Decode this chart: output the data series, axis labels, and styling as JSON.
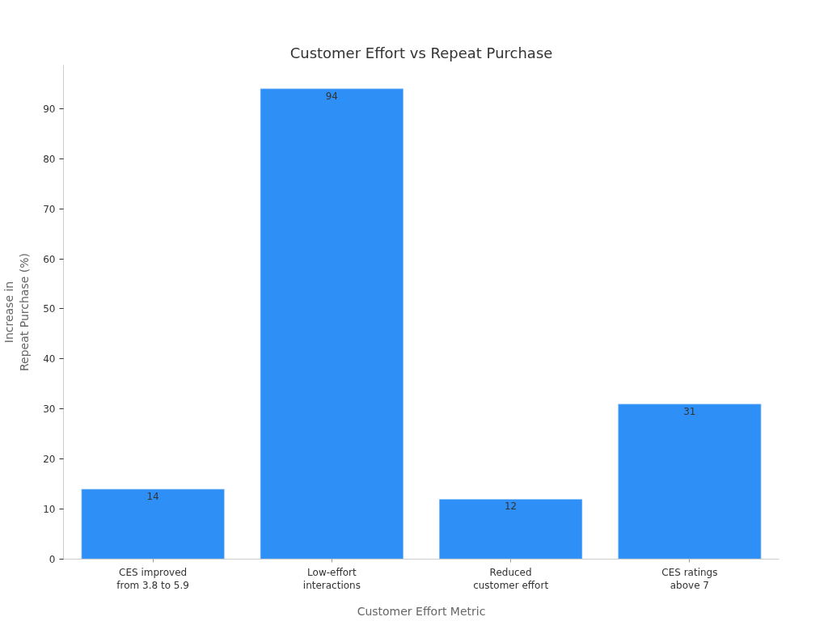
{
  "chart_data": {
    "type": "bar",
    "title": "Customer Effort vs Repeat Purchase",
    "xlabel": "Customer Effort Metric",
    "ylabel": "Increase in\nRepeat Purchase (%)",
    "categories": [
      "CES improved\nfrom 3.8 to 5.9",
      "Low-effort\ninteractions",
      "Reduced\ncustomer effort",
      "CES ratings\nabove 7"
    ],
    "values": [
      14,
      94,
      12,
      31
    ],
    "color": "#2e90f6",
    "ylim": [
      0,
      98.7
    ],
    "yticks": [
      0,
      10,
      20,
      30,
      40,
      50,
      60,
      70,
      80,
      90
    ],
    "data_labels": true
  }
}
